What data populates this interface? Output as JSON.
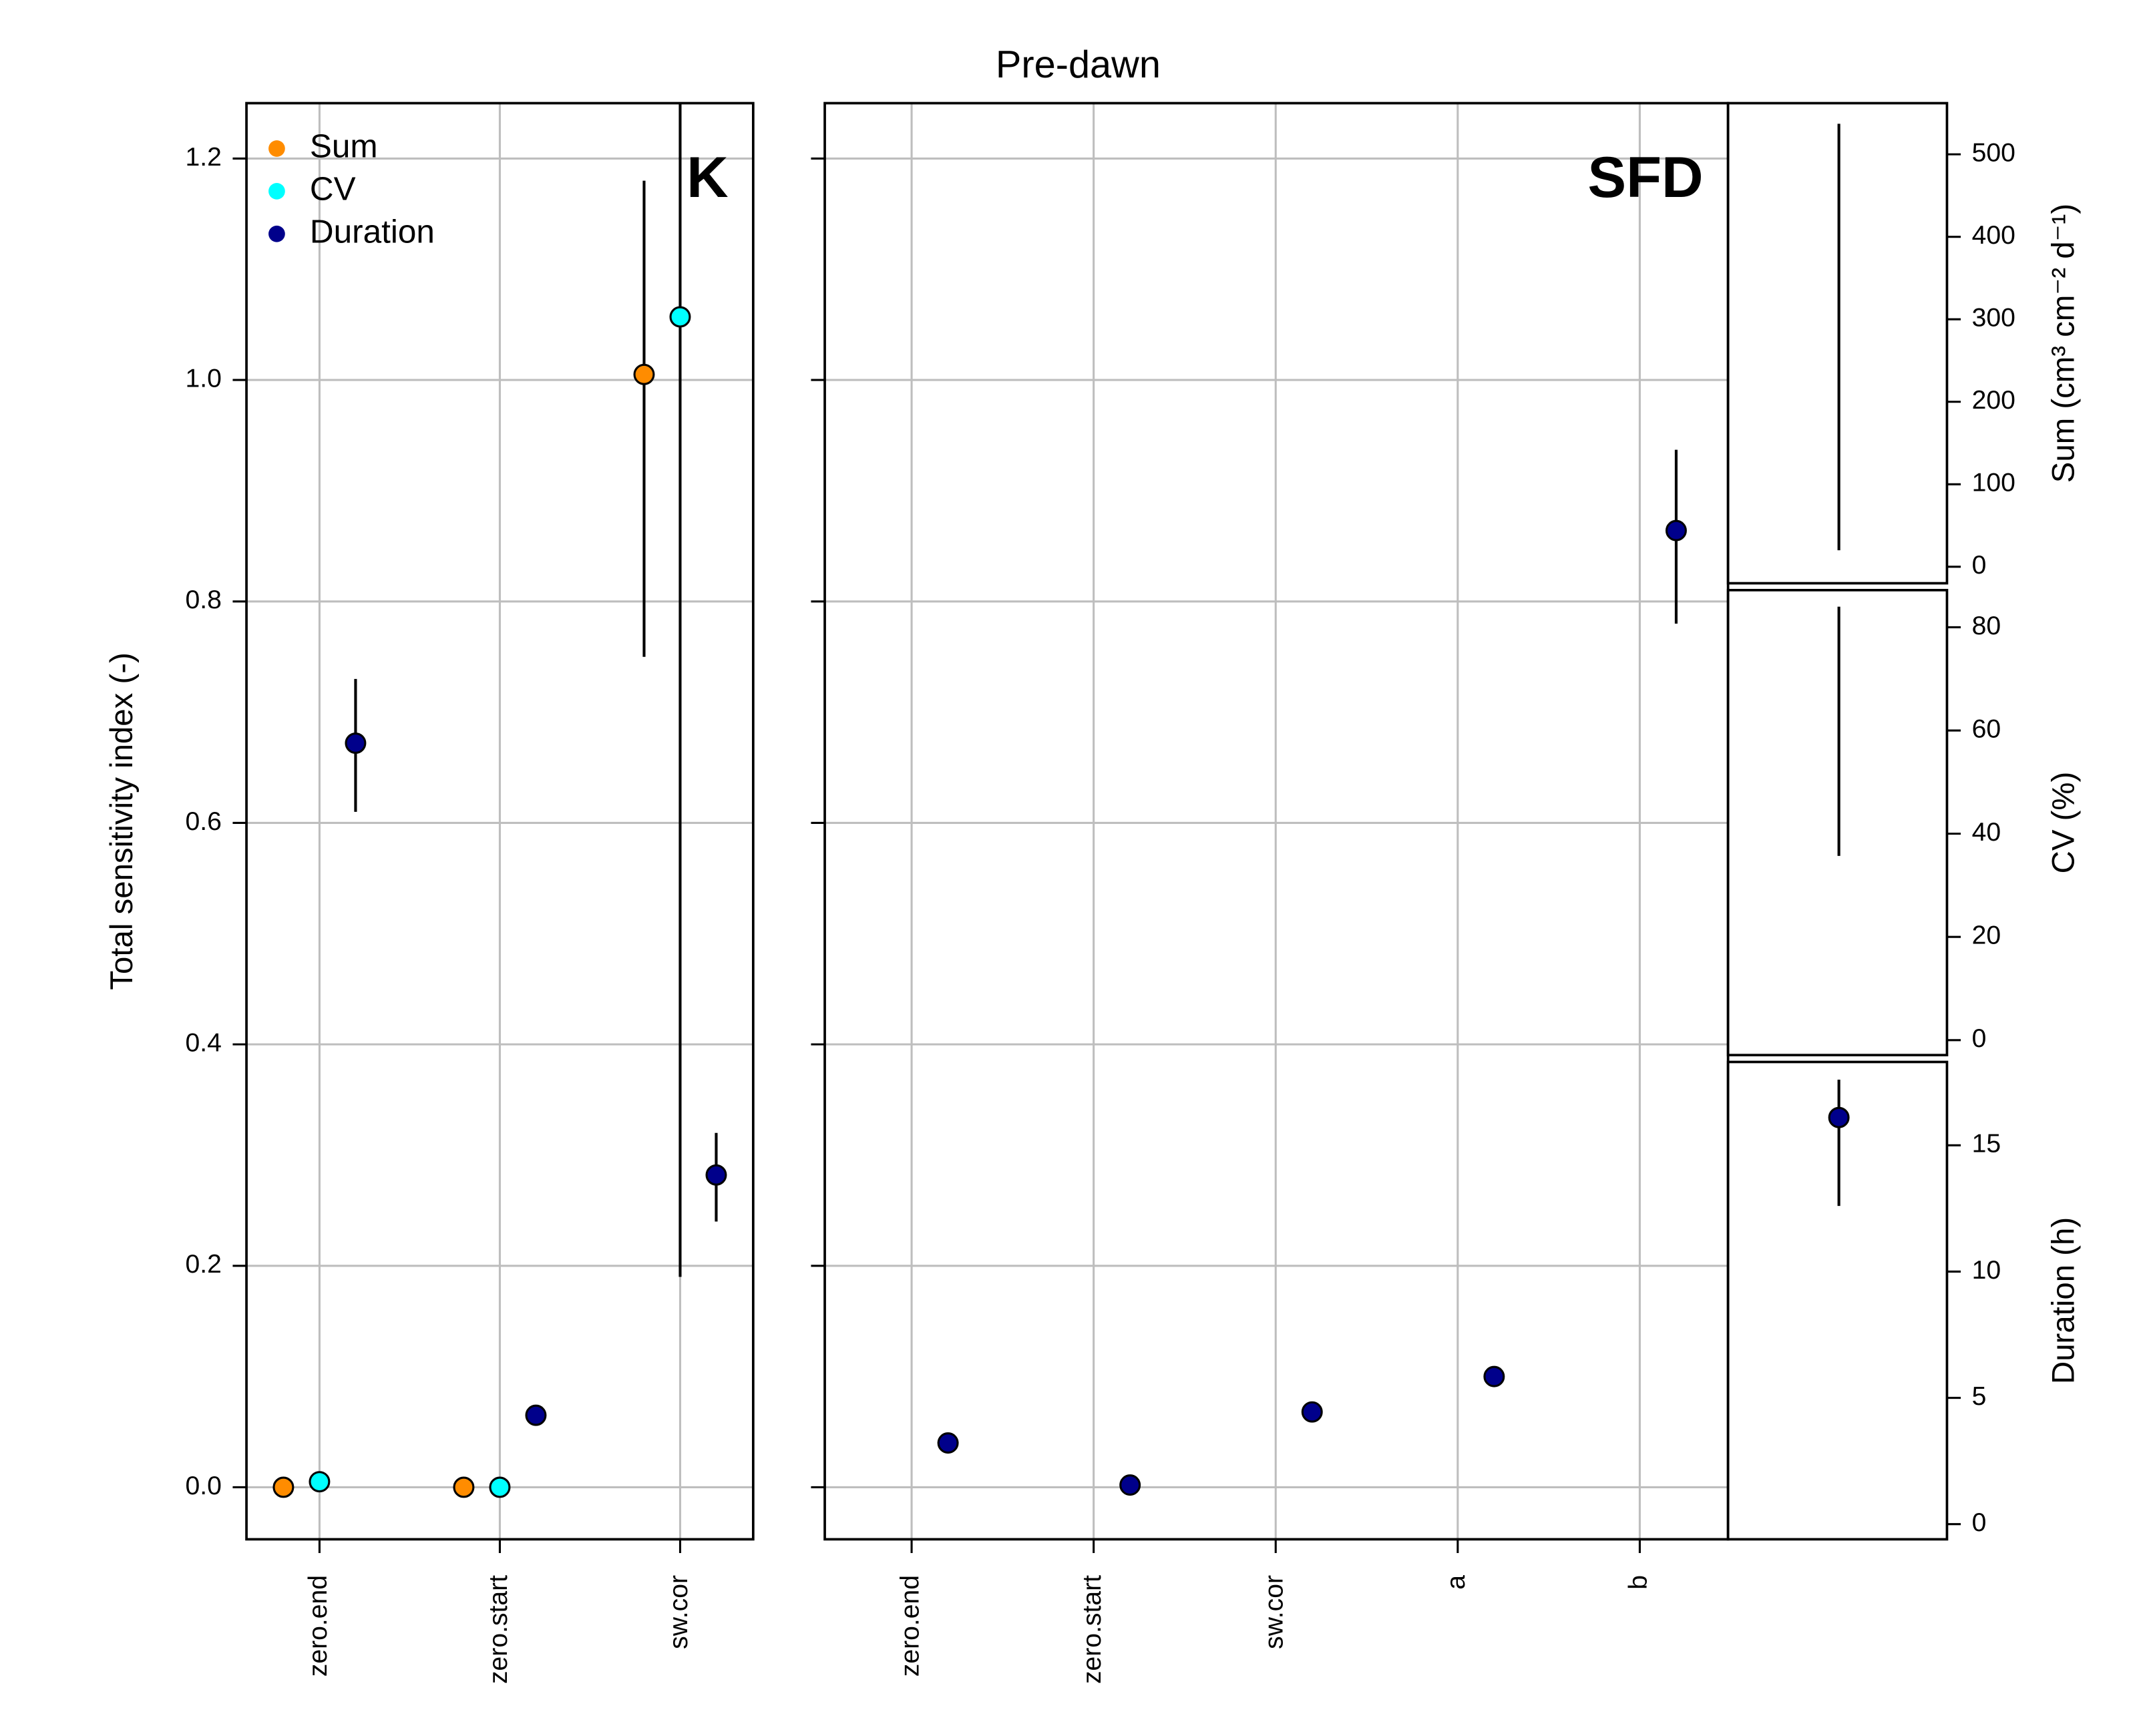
{
  "title": "Pre-dawn",
  "chart_data": [
    {
      "type": "scatter",
      "label": "K",
      "ylabel": "Total sensitivity index (-)",
      "categories": [
        "zero.end",
        "zero.start",
        "sw.cor"
      ],
      "xlim": [
        0.595,
        3.405
      ],
      "ylim": [
        -0.047,
        1.25
      ],
      "yticks": [
        {
          "value": 0,
          "label": "0.0"
        },
        0.2,
        0.4,
        0.6,
        0.8,
        {
          "value": 1,
          "label": "1.0"
        },
        1.2
      ],
      "grid": true,
      "legend": "top-left",
      "series": [
        {
          "name": "Sum",
          "color": "#ff8c00",
          "values": [
            0.0,
            0.0,
            1.005
          ],
          "lower": [
            null,
            null,
            0.75
          ],
          "upper": [
            null,
            null,
            1.18
          ]
        },
        {
          "name": "CV",
          "color": "#00ffff",
          "values": [
            0.005,
            0.0,
            1.057
          ],
          "lower": [
            null,
            null,
            0.19
          ],
          "upper": [
            null,
            null,
            1.3
          ]
        },
        {
          "name": "Duration",
          "color": "#00008b",
          "values": [
            0.672,
            0.065,
            0.282
          ],
          "lower": [
            0.61,
            null,
            0.24
          ],
          "upper": [
            0.73,
            null,
            0.32
          ]
        }
      ]
    },
    {
      "type": "scatter",
      "label": "SFD",
      "categories": [
        "zero.end",
        "zero.start",
        "sw.cor",
        "a",
        "b"
      ],
      "xlim": [
        0.523,
        5.485
      ],
      "ylim": [
        -0.047,
        1.25
      ],
      "yticks": [
        0,
        0.2,
        0.4,
        0.6,
        0.8,
        1,
        1.2
      ],
      "grid": true,
      "series": [
        {
          "color": "#00008b",
          "values": [
            0.04,
            0.002,
            0.068,
            0.1,
            0.864
          ],
          "lower": [
            null,
            null,
            0.06,
            0.092,
            0.78
          ],
          "upper": [
            null,
            null,
            0.076,
            0.108,
            0.937
          ]
        }
      ]
    },
    {
      "type": "range",
      "ylabel": "Sum (cm³ cm⁻² d⁻¹)",
      "ylim": [
        -20,
        562
      ],
      "yticks": [
        0,
        100,
        200,
        300,
        400,
        500
      ],
      "lower": 20,
      "upper": 537
    },
    {
      "type": "range",
      "ylabel": "CV (%)",
      "ylim": [
        -2.9,
        87.2
      ],
      "yticks": [
        0,
        20,
        40,
        60,
        80
      ],
      "lower": 35.7,
      "upper": 84
    },
    {
      "type": "range",
      "ylabel": "Duration (h)",
      "ylim": [
        -0.6,
        18.3
      ],
      "yticks": [
        0,
        5,
        10,
        15
      ],
      "value": 16.1,
      "lower": 12.6,
      "upper": 17.6
    }
  ]
}
